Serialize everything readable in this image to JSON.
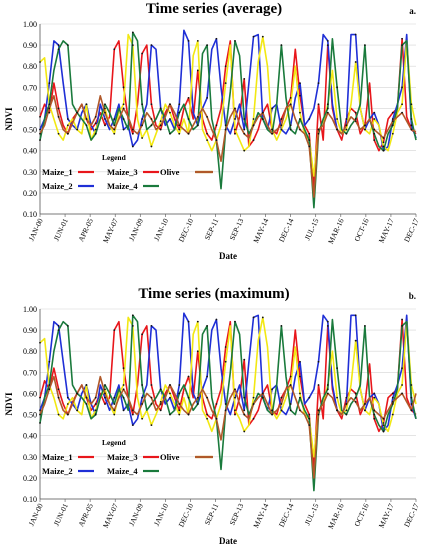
{
  "chart_data": [
    {
      "type": "line",
      "panel_label": "a.",
      "title": "Time series (average)",
      "xlabel": "Date",
      "ylabel": "NDVI",
      "ylim": [
        0.1,
        1.0
      ],
      "yticks": [
        "0.10",
        "0.20",
        "0.30",
        "0.40",
        "0.50",
        "0.60",
        "0.70",
        "0.80",
        "0.90",
        "1.00"
      ],
      "xticks": [
        "JAN-00",
        "JUN-01",
        "APR-05",
        "MAY-07",
        "JAN-09",
        "JAN-10",
        "DEC-10",
        "SEP-11",
        "SEP-13",
        "MAY-14",
        "DEC-14",
        "JUL-15",
        "MAR-16",
        "OCT-16",
        "MAY-17",
        "DEC-17"
      ],
      "grid": true,
      "legend": {
        "title": "Legend",
        "placement": "bottom-left"
      },
      "series": [
        {
          "name": "Maize_1",
          "color": "#e8161b",
          "values": [
            0.56,
            0.62,
            0.58,
            0.72,
            0.6,
            0.52,
            0.48,
            0.55,
            0.58,
            0.62,
            0.55,
            0.5,
            0.53,
            0.58,
            0.52,
            0.56,
            0.88,
            0.92,
            0.7,
            0.55,
            0.48,
            0.62,
            0.86,
            0.9,
            0.62,
            0.52,
            0.5,
            0.58,
            0.62,
            0.55,
            0.5,
            0.6,
            0.65,
            0.55,
            0.78,
            0.55,
            0.48,
            0.45,
            0.52,
            0.6,
            0.8,
            0.92,
            0.48,
            0.56,
            0.74,
            0.42,
            0.45,
            0.5,
            0.58,
            0.62,
            0.5,
            0.48,
            0.55,
            0.6,
            0.65,
            0.88,
            0.66,
            0.52,
            0.48,
            0.22,
            0.62,
            0.45,
            0.9,
            0.6,
            0.5,
            0.45,
            0.55,
            0.6,
            0.58,
            0.48,
            0.52,
            0.72,
            0.45,
            0.4,
            0.44,
            0.55,
            0.58,
            0.6,
            0.93,
            0.56,
            0.5,
            0.48
          ]
        },
        {
          "name": "Maize_2",
          "color": "#1f2fd6",
          "values": [
            0.5,
            0.55,
            0.72,
            0.92,
            0.9,
            0.72,
            0.55,
            0.52,
            0.5,
            0.58,
            0.62,
            0.52,
            0.48,
            0.62,
            0.55,
            0.5,
            0.55,
            0.62,
            0.5,
            0.52,
            0.42,
            0.45,
            0.55,
            0.62,
            0.9,
            0.88,
            0.6,
            0.52,
            0.55,
            0.5,
            0.62,
            0.97,
            0.92,
            0.58,
            0.52,
            0.6,
            0.65,
            0.88,
            0.93,
            0.7,
            0.52,
            0.48,
            0.55,
            0.62,
            0.5,
            0.72,
            0.94,
            0.95,
            0.55,
            0.5,
            0.6,
            0.62,
            0.5,
            0.48,
            0.52,
            0.65,
            0.72,
            0.52,
            0.55,
            0.6,
            0.72,
            0.95,
            0.92,
            0.62,
            0.5,
            0.48,
            0.52,
            0.95,
            0.95,
            0.6,
            0.5,
            0.55,
            0.58,
            0.52,
            0.4,
            0.42,
            0.55,
            0.62,
            0.7,
            0.95,
            0.52,
            0.46
          ]
        },
        {
          "name": "Olive",
          "color": "#f2e812",
          "values": [
            0.82,
            0.84,
            0.62,
            0.55,
            0.48,
            0.45,
            0.52,
            0.55,
            0.5,
            0.48,
            0.62,
            0.45,
            0.5,
            0.55,
            0.6,
            0.52,
            0.48,
            0.58,
            0.62,
            0.95,
            0.9,
            0.55,
            0.46,
            0.5,
            0.42,
            0.48,
            0.54,
            0.62,
            0.58,
            0.52,
            0.48,
            0.55,
            0.48,
            0.85,
            0.92,
            0.5,
            0.45,
            0.4,
            0.45,
            0.52,
            0.72,
            0.9,
            0.5,
            0.45,
            0.4,
            0.42,
            0.55,
            0.82,
            0.94,
            0.8,
            0.5,
            0.45,
            0.5,
            0.55,
            0.62,
            0.8,
            0.58,
            0.48,
            0.45,
            0.28,
            0.5,
            0.52,
            0.62,
            0.78,
            0.55,
            0.48,
            0.5,
            0.62,
            0.82,
            0.6,
            0.5,
            0.48,
            0.55,
            0.52,
            0.42,
            0.4,
            0.48,
            0.58,
            0.62,
            0.92,
            0.62,
            0.52
          ]
        },
        {
          "name": "Maize_4",
          "color": "#1a7a3c",
          "values": [
            0.45,
            0.55,
            0.62,
            0.78,
            0.88,
            0.92,
            0.9,
            0.62,
            0.58,
            0.55,
            0.52,
            0.45,
            0.48,
            0.55,
            0.62,
            0.58,
            0.52,
            0.6,
            0.55,
            0.5,
            0.96,
            0.92,
            0.62,
            0.5,
            0.52,
            0.55,
            0.6,
            0.55,
            0.48,
            0.5,
            0.58,
            0.62,
            0.55,
            0.5,
            0.52,
            0.86,
            0.9,
            0.55,
            0.45,
            0.22,
            0.5,
            0.68,
            0.92,
            0.85,
            0.55,
            0.48,
            0.52,
            0.58,
            0.55,
            0.5,
            0.48,
            0.62,
            0.9,
            0.65,
            0.5,
            0.48,
            0.55,
            0.5,
            0.45,
            0.13,
            0.48,
            0.55,
            0.6,
            0.93,
            0.7,
            0.5,
            0.48,
            0.52,
            0.55,
            0.62,
            0.9,
            0.55,
            0.48,
            0.42,
            0.4,
            0.48,
            0.52,
            0.6,
            0.9,
            0.92,
            0.55,
            0.45
          ]
        },
        {
          "name": "Maize_3",
          "color": "#b0592a",
          "values": [
            0.48,
            0.52,
            0.6,
            0.66,
            0.56,
            0.5,
            0.48,
            0.53,
            0.58,
            0.62,
            0.55,
            0.52,
            0.56,
            0.66,
            0.58,
            0.52,
            0.5,
            0.55,
            0.6,
            0.56,
            0.5,
            0.48,
            0.52,
            0.58,
            0.55,
            0.5,
            0.52,
            0.56,
            0.62,
            0.58,
            0.52,
            0.5,
            0.48,
            0.52,
            0.56,
            0.6,
            0.56,
            0.5,
            0.45,
            0.35,
            0.5,
            0.56,
            0.6,
            0.52,
            0.48,
            0.46,
            0.52,
            0.56,
            0.58,
            0.52,
            0.48,
            0.5,
            0.52,
            0.6,
            0.62,
            0.55,
            0.5,
            0.48,
            0.42,
            0.18,
            0.5,
            0.52,
            0.58,
            0.55,
            0.5,
            0.48,
            0.52,
            0.56,
            0.54,
            0.5,
            0.52,
            0.55,
            0.5,
            0.48,
            0.46,
            0.5,
            0.54,
            0.56,
            0.58,
            0.54,
            0.5,
            0.49
          ]
        }
      ]
    },
    {
      "type": "line",
      "panel_label": "b.",
      "title": "Time series (maximum)",
      "xlabel": "Date",
      "ylabel": "NDVI",
      "ylim": [
        0.1,
        1.0
      ],
      "yticks": [
        "0.10",
        "0.20",
        "0.30",
        "0.40",
        "0.50",
        "0.60",
        "0.70",
        "0.80",
        "0.90",
        "1.00"
      ],
      "xticks": [
        "JAN-00",
        "JUN-01",
        "APR-05",
        "MAY-07",
        "JAN-09",
        "JAN-10",
        "DEC-10",
        "SEP-11",
        "SEP-13",
        "MAY-14",
        "DEC-14",
        "JUL-15",
        "MAR-16",
        "OCT-16",
        "MAY-17",
        "DEC-17"
      ],
      "grid": true,
      "legend": {
        "title": "Legend",
        "placement": "bottom-left"
      },
      "series": [
        {
          "name": "Maize_1",
          "color": "#e8161b",
          "values": [
            0.58,
            0.66,
            0.62,
            0.72,
            0.62,
            0.55,
            0.5,
            0.56,
            0.6,
            0.64,
            0.58,
            0.52,
            0.55,
            0.6,
            0.55,
            0.58,
            0.9,
            0.94,
            0.72,
            0.58,
            0.5,
            0.64,
            0.88,
            0.92,
            0.64,
            0.55,
            0.52,
            0.6,
            0.64,
            0.58,
            0.52,
            0.62,
            0.68,
            0.58,
            0.8,
            0.58,
            0.5,
            0.48,
            0.55,
            0.62,
            0.82,
            0.94,
            0.5,
            0.58,
            0.76,
            0.45,
            0.48,
            0.52,
            0.6,
            0.64,
            0.52,
            0.5,
            0.58,
            0.62,
            0.68,
            0.9,
            0.68,
            0.55,
            0.5,
            0.24,
            0.64,
            0.48,
            0.92,
            0.62,
            0.52,
            0.48,
            0.58,
            0.62,
            0.6,
            0.5,
            0.55,
            0.74,
            0.48,
            0.42,
            0.46,
            0.58,
            0.6,
            0.62,
            0.95,
            0.58,
            0.52,
            0.5
          ]
        },
        {
          "name": "Maize_2",
          "color": "#1f2fd6",
          "values": [
            0.52,
            0.58,
            0.75,
            0.94,
            0.92,
            0.75,
            0.58,
            0.55,
            0.52,
            0.6,
            0.64,
            0.55,
            0.5,
            0.64,
            0.58,
            0.52,
            0.58,
            0.64,
            0.52,
            0.55,
            0.45,
            0.48,
            0.58,
            0.64,
            0.92,
            0.9,
            0.62,
            0.55,
            0.58,
            0.52,
            0.64,
            0.98,
            0.94,
            0.6,
            0.55,
            0.62,
            0.68,
            0.9,
            0.95,
            0.72,
            0.55,
            0.5,
            0.58,
            0.64,
            0.52,
            0.75,
            0.96,
            0.97,
            0.58,
            0.52,
            0.62,
            0.64,
            0.52,
            0.5,
            0.55,
            0.68,
            0.75,
            0.55,
            0.58,
            0.62,
            0.75,
            0.97,
            0.94,
            0.64,
            0.52,
            0.5,
            0.55,
            0.97,
            0.97,
            0.62,
            0.52,
            0.58,
            0.6,
            0.55,
            0.42,
            0.45,
            0.58,
            0.64,
            0.72,
            0.97,
            0.55,
            0.48
          ]
        },
        {
          "name": "Olive",
          "color": "#f2e812",
          "values": [
            0.84,
            0.86,
            0.64,
            0.58,
            0.5,
            0.48,
            0.55,
            0.58,
            0.52,
            0.5,
            0.64,
            0.48,
            0.52,
            0.58,
            0.62,
            0.55,
            0.5,
            0.6,
            0.64,
            0.96,
            0.92,
            0.58,
            0.48,
            0.52,
            0.45,
            0.5,
            0.56,
            0.64,
            0.6,
            0.55,
            0.5,
            0.58,
            0.5,
            0.88,
            0.94,
            0.52,
            0.48,
            0.42,
            0.48,
            0.55,
            0.75,
            0.92,
            0.52,
            0.48,
            0.42,
            0.45,
            0.58,
            0.85,
            0.96,
            0.82,
            0.52,
            0.48,
            0.52,
            0.58,
            0.64,
            0.82,
            0.6,
            0.5,
            0.48,
            0.3,
            0.52,
            0.55,
            0.64,
            0.8,
            0.58,
            0.5,
            0.52,
            0.64,
            0.85,
            0.62,
            0.52,
            0.5,
            0.58,
            0.55,
            0.45,
            0.42,
            0.5,
            0.6,
            0.64,
            0.94,
            0.64,
            0.55
          ]
        },
        {
          "name": "Maize_4",
          "color": "#1a7a3c",
          "values": [
            0.46,
            0.58,
            0.64,
            0.8,
            0.9,
            0.94,
            0.92,
            0.64,
            0.6,
            0.58,
            0.55,
            0.48,
            0.5,
            0.58,
            0.64,
            0.6,
            0.55,
            0.62,
            0.58,
            0.52,
            0.97,
            0.94,
            0.64,
            0.52,
            0.55,
            0.58,
            0.62,
            0.58,
            0.5,
            0.52,
            0.6,
            0.64,
            0.58,
            0.52,
            0.55,
            0.88,
            0.92,
            0.58,
            0.48,
            0.24,
            0.52,
            0.7,
            0.94,
            0.88,
            0.58,
            0.5,
            0.55,
            0.6,
            0.58,
            0.52,
            0.5,
            0.64,
            0.92,
            0.68,
            0.52,
            0.5,
            0.58,
            0.52,
            0.48,
            0.14,
            0.5,
            0.58,
            0.62,
            0.95,
            0.72,
            0.52,
            0.5,
            0.55,
            0.58,
            0.64,
            0.92,
            0.58,
            0.5,
            0.45,
            0.42,
            0.5,
            0.55,
            0.62,
            0.92,
            0.94,
            0.58,
            0.48
          ]
        },
        {
          "name": "Maize_3",
          "color": "#b0592a",
          "values": [
            0.5,
            0.55,
            0.62,
            0.68,
            0.58,
            0.52,
            0.5,
            0.55,
            0.6,
            0.64,
            0.58,
            0.55,
            0.58,
            0.68,
            0.6,
            0.55,
            0.52,
            0.58,
            0.62,
            0.58,
            0.52,
            0.5,
            0.55,
            0.6,
            0.58,
            0.52,
            0.55,
            0.58,
            0.64,
            0.6,
            0.55,
            0.52,
            0.5,
            0.55,
            0.58,
            0.62,
            0.58,
            0.52,
            0.48,
            0.38,
            0.52,
            0.58,
            0.62,
            0.55,
            0.5,
            0.48,
            0.55,
            0.58,
            0.6,
            0.55,
            0.5,
            0.52,
            0.55,
            0.62,
            0.64,
            0.58,
            0.52,
            0.5,
            0.45,
            0.2,
            0.52,
            0.55,
            0.6,
            0.58,
            0.52,
            0.5,
            0.55,
            0.58,
            0.56,
            0.52,
            0.55,
            0.58,
            0.52,
            0.5,
            0.48,
            0.52,
            0.56,
            0.58,
            0.6,
            0.56,
            0.52,
            0.6
          ]
        }
      ]
    }
  ]
}
